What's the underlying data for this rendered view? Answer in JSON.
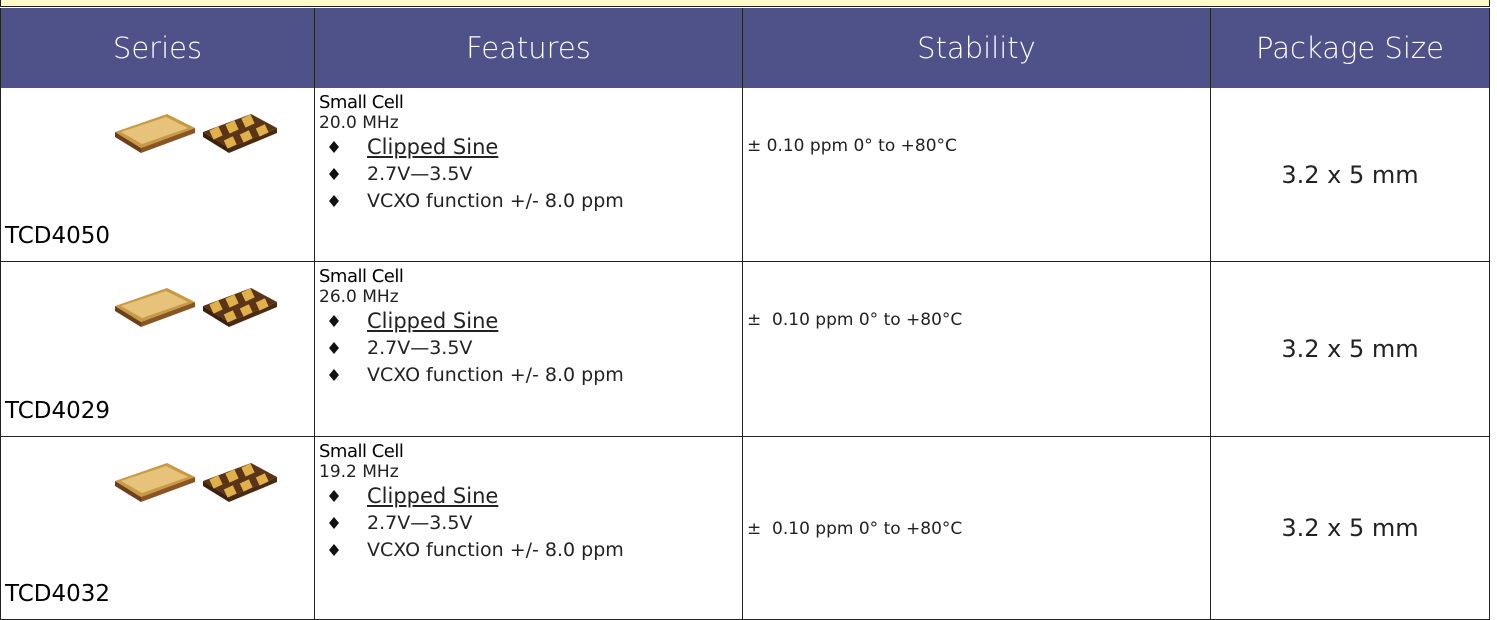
{
  "table": {
    "headers": [
      "Series",
      "Features",
      "Stability",
      "Package Size"
    ],
    "rows": [
      {
        "series": "TCD4050",
        "feature_title": "Small Cell",
        "frequency": "20.0 MHz",
        "bullets": [
          "Clipped Sine",
          "2.7V—3.5V",
          "VCXO function +/- 8.0 ppm"
        ],
        "stability": "± 0.10 ppm 0° to +80°C",
        "package": "3.2 x 5 mm"
      },
      {
        "series": "TCD4029",
        "feature_title": "Small Cell",
        "frequency": "26.0 MHz",
        "bullets": [
          "Clipped Sine",
          "2.7V—3.5V",
          "VCXO function +/- 8.0 ppm"
        ],
        "stability": "±  0.10 ppm 0° to +80°C",
        "package": "3.2 x 5 mm"
      },
      {
        "series": "TCD4032",
        "feature_title": "Small Cell",
        "frequency": "19.2 MHz",
        "bullets": [
          "Clipped Sine",
          "2.7V—3.5V",
          "VCXO function +/- 8.0 ppm"
        ],
        "stability": "±  0.10 ppm 0° to +80°C",
        "package": "3.2 x 5 mm"
      }
    ]
  }
}
